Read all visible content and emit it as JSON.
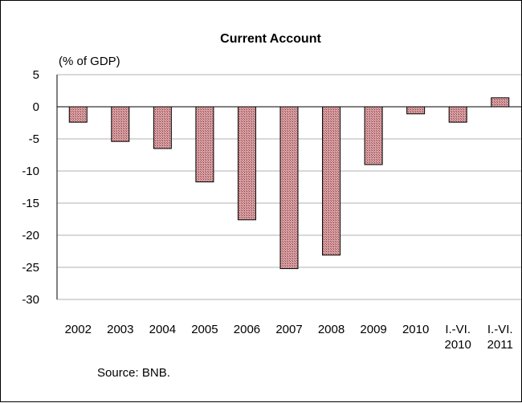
{
  "chart_data": {
    "type": "bar",
    "title": "Current Account",
    "ylabel": "(% of GDP)",
    "xlabel": "",
    "source": "Source: BNB.",
    "categories": [
      [
        "2002"
      ],
      [
        "2003"
      ],
      [
        "2004"
      ],
      [
        "2005"
      ],
      [
        "2006"
      ],
      [
        "2007"
      ],
      [
        "2008"
      ],
      [
        "2009"
      ],
      [
        "2010"
      ],
      [
        "I.-VI.",
        "2010"
      ],
      [
        "I.-VI.",
        "2011"
      ]
    ],
    "values": [
      -2.4,
      -5.4,
      -6.5,
      -11.7,
      -17.6,
      -25.2,
      -23.1,
      -9.0,
      -1.1,
      -2.4,
      1.4
    ],
    "ylim": [
      -30,
      5
    ],
    "yticks": [
      5,
      0,
      -5,
      -10,
      -15,
      -20,
      -25,
      -30
    ],
    "grid": true,
    "legend": "none",
    "colors": {
      "bar_fill": "#c98f93",
      "bar_hatch": "#8e3a3f",
      "grid": "#b0b0b0",
      "axis": "#000000"
    }
  }
}
